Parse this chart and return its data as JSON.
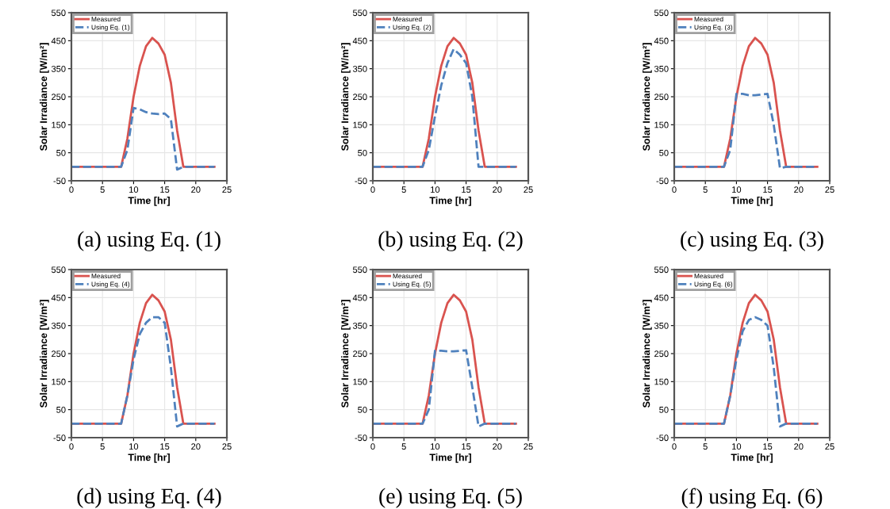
{
  "chart_data": [
    {
      "type": "line",
      "title": "(a) using Eq. (1)",
      "xlabel": "Time [hr]",
      "ylabel": "Solar Irradiance [W/m²]",
      "x": [
        0,
        1,
        2,
        3,
        4,
        5,
        6,
        7,
        8,
        9,
        10,
        11,
        12,
        13,
        14,
        15,
        16,
        17,
        18,
        19,
        20,
        21,
        22,
        23
      ],
      "xlim": [
        0,
        25
      ],
      "ylim": [
        -50,
        550
      ],
      "xticks": [
        0,
        5,
        10,
        15,
        20,
        25
      ],
      "yticks": [
        -50,
        50,
        150,
        250,
        350,
        450,
        550
      ],
      "grid": true,
      "legend": "top left",
      "series": [
        {
          "name": "Measured",
          "color": "#d9534f",
          "line_style": "solid",
          "values": [
            0,
            0,
            0,
            0,
            0,
            0,
            0,
            0,
            0,
            100,
            250,
            360,
            430,
            460,
            440,
            400,
            300,
            130,
            0,
            0,
            0,
            0,
            0,
            0
          ]
        },
        {
          "name": "Using Eq. (1)",
          "color": "#4f81bd",
          "line_style": "dashed",
          "values": [
            0,
            0,
            0,
            0,
            0,
            0,
            0,
            0,
            0,
            60,
            210,
            205,
            195,
            190,
            188,
            190,
            170,
            -10,
            0,
            0,
            0,
            0,
            0,
            0
          ]
        }
      ]
    },
    {
      "type": "line",
      "title": "(b) using Eq. (2)",
      "xlabel": "Time [hr]",
      "ylabel": "Solar Irradiance [W/m²]",
      "x": [
        0,
        1,
        2,
        3,
        4,
        5,
        6,
        7,
        8,
        9,
        10,
        11,
        12,
        13,
        14,
        15,
        16,
        17,
        18,
        19,
        20,
        21,
        22,
        23
      ],
      "xlim": [
        0,
        25
      ],
      "ylim": [
        -50,
        550
      ],
      "xticks": [
        0,
        5,
        10,
        15,
        20,
        25
      ],
      "yticks": [
        -50,
        50,
        150,
        250,
        350,
        450,
        550
      ],
      "grid": true,
      "legend": "top left",
      "series": [
        {
          "name": "Measured",
          "color": "#d9534f",
          "line_style": "solid",
          "values": [
            0,
            0,
            0,
            0,
            0,
            0,
            0,
            0,
            0,
            100,
            250,
            360,
            430,
            460,
            440,
            400,
            300,
            130,
            0,
            0,
            0,
            0,
            0,
            0
          ]
        },
        {
          "name": "Using Eq. (2)",
          "color": "#4f81bd",
          "line_style": "dashed",
          "values": [
            0,
            0,
            0,
            0,
            0,
            0,
            0,
            0,
            0,
            60,
            180,
            290,
            370,
            420,
            400,
            370,
            250,
            0,
            0,
            0,
            0,
            0,
            0,
            0
          ]
        }
      ]
    },
    {
      "type": "line",
      "title": "(c) using Eq. (3)",
      "xlabel": "Time [hr]",
      "ylabel": "Solar Irradiance [W/m²]",
      "x": [
        0,
        1,
        2,
        3,
        4,
        5,
        6,
        7,
        8,
        9,
        10,
        11,
        12,
        13,
        14,
        15,
        16,
        17,
        18,
        19,
        20,
        21,
        22,
        23
      ],
      "xlim": [
        0,
        25
      ],
      "ylim": [
        -50,
        550
      ],
      "xticks": [
        0,
        5,
        10,
        15,
        20,
        25
      ],
      "yticks": [
        -50,
        50,
        150,
        250,
        350,
        450,
        550
      ],
      "grid": true,
      "legend": "top left",
      "series": [
        {
          "name": "Measured",
          "color": "#d9534f",
          "line_style": "solid",
          "values": [
            0,
            0,
            0,
            0,
            0,
            0,
            0,
            0,
            0,
            100,
            250,
            360,
            430,
            460,
            440,
            400,
            300,
            130,
            0,
            0,
            0,
            0,
            0,
            0
          ]
        },
        {
          "name": "Using Eq. (3)",
          "color": "#4f81bd",
          "line_style": "dashed",
          "values": [
            0,
            0,
            0,
            0,
            0,
            0,
            0,
            0,
            0,
            60,
            260,
            260,
            255,
            255,
            258,
            260,
            150,
            -5,
            0,
            0,
            0,
            0,
            0,
            0
          ]
        }
      ]
    },
    {
      "type": "line",
      "title": "(d) using Eq. (4)",
      "xlabel": "Time [hr]",
      "ylabel": "Solar Irradiance [W/m²]",
      "x": [
        0,
        1,
        2,
        3,
        4,
        5,
        6,
        7,
        8,
        9,
        10,
        11,
        12,
        13,
        14,
        15,
        16,
        17,
        18,
        19,
        20,
        21,
        22,
        23
      ],
      "xlim": [
        0,
        25
      ],
      "ylim": [
        -50,
        550
      ],
      "xticks": [
        0,
        5,
        10,
        15,
        20,
        25
      ],
      "yticks": [
        -50,
        50,
        150,
        250,
        350,
        450,
        550
      ],
      "grid": true,
      "legend": "top left",
      "series": [
        {
          "name": "Measured",
          "color": "#d9534f",
          "line_style": "solid",
          "values": [
            0,
            0,
            0,
            0,
            0,
            0,
            0,
            0,
            0,
            100,
            250,
            360,
            430,
            460,
            440,
            400,
            300,
            130,
            0,
            0,
            0,
            0,
            0,
            0
          ]
        },
        {
          "name": "Using Eq. (4)",
          "color": "#4f81bd",
          "line_style": "dashed",
          "values": [
            0,
            0,
            0,
            0,
            0,
            0,
            0,
            0,
            0,
            100,
            230,
            320,
            360,
            380,
            380,
            360,
            200,
            -10,
            0,
            0,
            0,
            0,
            0,
            0
          ]
        }
      ]
    },
    {
      "type": "line",
      "title": "(e) using Eq. (5)",
      "xlabel": "Time [hr]",
      "ylabel": "Solar Irradiance [W/m²]",
      "x": [
        0,
        1,
        2,
        3,
        4,
        5,
        6,
        7,
        8,
        9,
        10,
        11,
        12,
        13,
        14,
        15,
        16,
        17,
        18,
        19,
        20,
        21,
        22,
        23
      ],
      "xlim": [
        0,
        25
      ],
      "ylim": [
        -50,
        550
      ],
      "xticks": [
        0,
        5,
        10,
        15,
        20,
        25
      ],
      "yticks": [
        -50,
        50,
        150,
        250,
        350,
        450,
        550
      ],
      "grid": true,
      "legend": "top left",
      "series": [
        {
          "name": "Measured",
          "color": "#d9534f",
          "line_style": "solid",
          "values": [
            0,
            0,
            0,
            0,
            0,
            0,
            0,
            0,
            0,
            100,
            250,
            360,
            430,
            460,
            440,
            400,
            300,
            130,
            0,
            0,
            0,
            0,
            0,
            0
          ]
        },
        {
          "name": "Using Eq. (5)",
          "color": "#4f81bd",
          "line_style": "dashed",
          "values": [
            0,
            0,
            0,
            0,
            0,
            0,
            0,
            0,
            0,
            50,
            260,
            260,
            258,
            258,
            260,
            262,
            130,
            -10,
            0,
            0,
            0,
            0,
            0,
            0
          ]
        }
      ]
    },
    {
      "type": "line",
      "title": "(f) using Eq. (6)",
      "xlabel": "Time [hr]",
      "ylabel": "Solar Irradiance [W/m²]",
      "x": [
        0,
        1,
        2,
        3,
        4,
        5,
        6,
        7,
        8,
        9,
        10,
        11,
        12,
        13,
        14,
        15,
        16,
        17,
        18,
        19,
        20,
        21,
        22,
        23
      ],
      "xlim": [
        0,
        25
      ],
      "ylim": [
        -50,
        550
      ],
      "xticks": [
        0,
        5,
        10,
        15,
        20,
        25
      ],
      "yticks": [
        -50,
        50,
        150,
        250,
        350,
        450,
        550
      ],
      "grid": true,
      "legend": "top left",
      "series": [
        {
          "name": "Measured",
          "color": "#d9534f",
          "line_style": "solid",
          "values": [
            0,
            0,
            0,
            0,
            0,
            0,
            0,
            0,
            0,
            100,
            250,
            360,
            430,
            460,
            440,
            400,
            300,
            130,
            0,
            0,
            0,
            0,
            0,
            0
          ]
        },
        {
          "name": "Using Eq. (6)",
          "color": "#4f81bd",
          "line_style": "dashed",
          "values": [
            0,
            0,
            0,
            0,
            0,
            0,
            0,
            0,
            0,
            100,
            230,
            330,
            370,
            380,
            370,
            350,
            200,
            -10,
            0,
            0,
            0,
            0,
            0,
            0
          ]
        }
      ]
    }
  ]
}
